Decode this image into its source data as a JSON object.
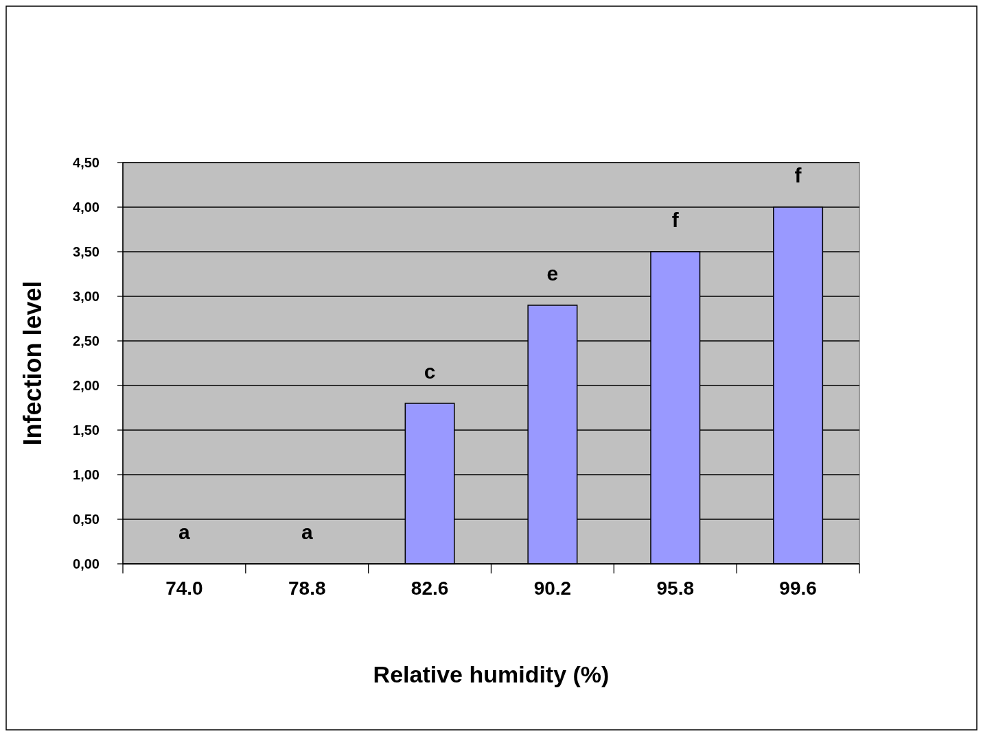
{
  "chart_data": {
    "type": "bar",
    "xlabel": "Relative humidity (%)",
    "ylabel": "Infection level",
    "categories": [
      "74.0",
      "78.8",
      "82.6",
      "90.2",
      "95.8",
      "99.6"
    ],
    "values": [
      0,
      0,
      1.8,
      2.9,
      3.5,
      4.0
    ],
    "color": "#9999ff",
    "ylim": [
      0,
      4.5
    ],
    "yticks": [
      {
        "value": 0,
        "label": "0,00"
      },
      {
        "value": 0.5,
        "label": "0,50"
      },
      {
        "value": 1,
        "label": "1,00"
      },
      {
        "value": 1.5,
        "label": "1,50"
      },
      {
        "value": 2,
        "label": "2,00"
      },
      {
        "value": 2.5,
        "label": "2,50"
      },
      {
        "value": 3,
        "label": "3,00"
      },
      {
        "value": 3.5,
        "label": "3,50"
      },
      {
        "value": 4,
        "label": "4,00"
      },
      {
        "value": 4.5,
        "label": "4,50"
      }
    ],
    "grid": "y",
    "annotations": [
      {
        "text": "a",
        "x": "74.0",
        "y": 0
      },
      {
        "text": "a",
        "x": "78.8",
        "y": 0
      },
      {
        "text": "c",
        "x": "82.6",
        "y": 1.8
      },
      {
        "text": "e",
        "x": "90.2",
        "y": 2.9
      },
      {
        "text": "f",
        "x": "95.8",
        "y": 3.5
      },
      {
        "text": "f",
        "x": "99.6",
        "y": 4.0
      }
    ]
  }
}
